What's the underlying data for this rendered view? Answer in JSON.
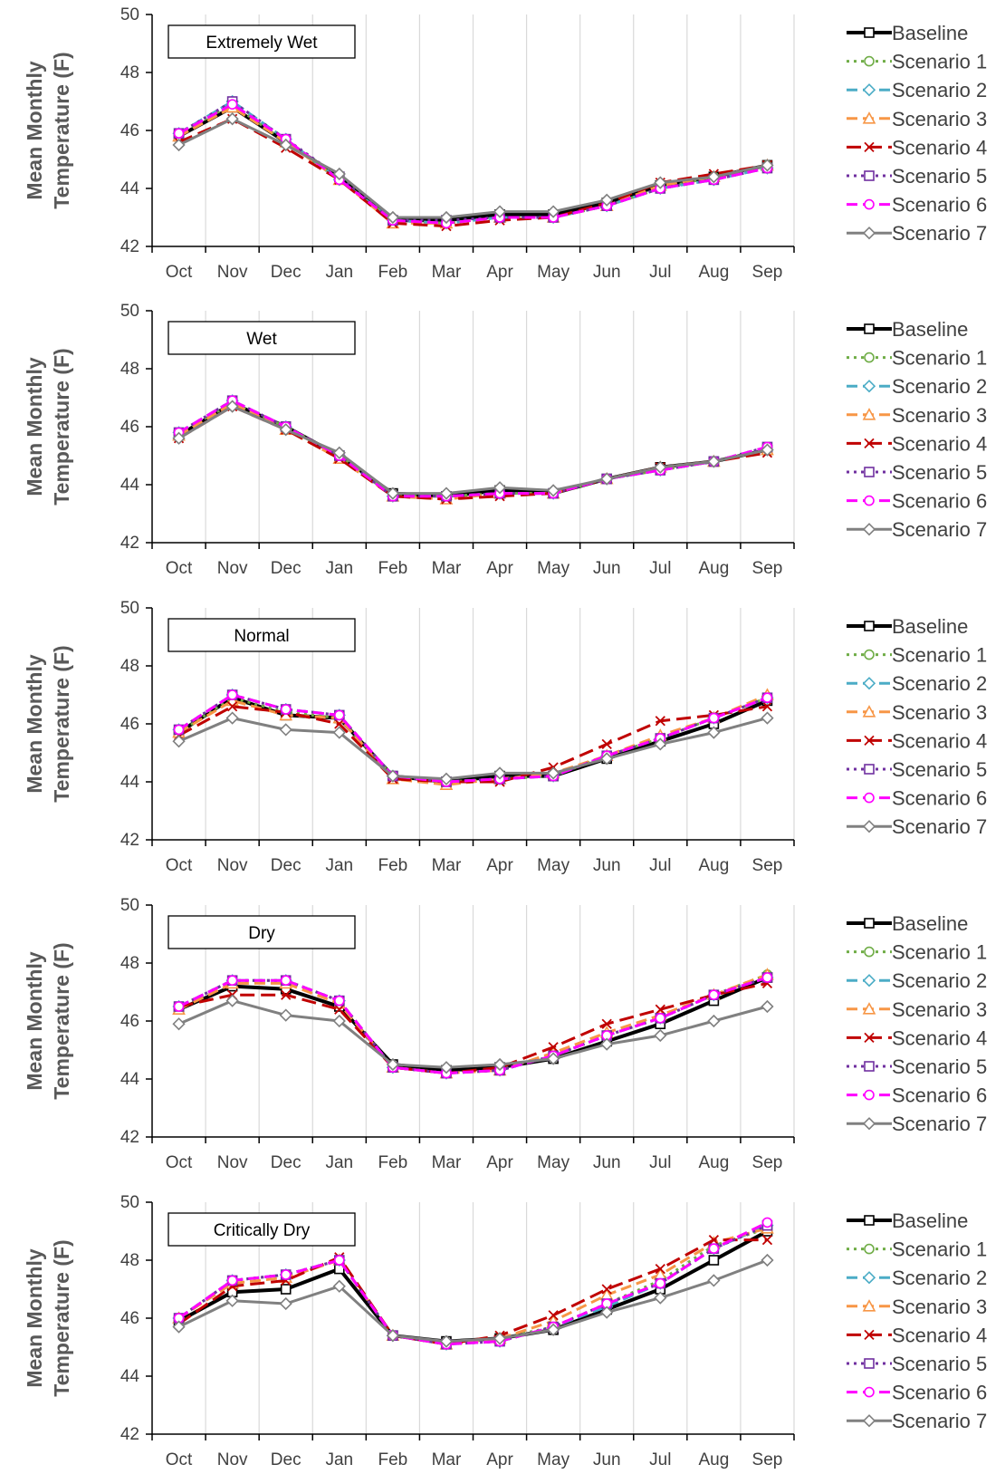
{
  "y_axis_label_line1": "Mean Monthly",
  "y_axis_label_line2": "Temperature (F)",
  "styles": [
    {
      "color": "#000000",
      "dash": "",
      "width": 4,
      "marker": "square"
    },
    {
      "color": "#70AD47",
      "dash": "3 5",
      "width": 3,
      "marker": "circle"
    },
    {
      "color": "#4BACC6",
      "dash": "12 6",
      "width": 3,
      "marker": "diamond"
    },
    {
      "color": "#F79646",
      "dash": "12 6",
      "width": 3,
      "marker": "triangle"
    },
    {
      "color": "#C00000",
      "dash": "16 7",
      "width": 3,
      "marker": "x"
    },
    {
      "color": "#7030A0",
      "dash": "3 5",
      "width": 3,
      "marker": "square"
    },
    {
      "color": "#FF00FF",
      "dash": "12 6",
      "width": 3,
      "marker": "circle"
    },
    {
      "color": "#808080",
      "dash": "",
      "width": 3,
      "marker": "diamond"
    }
  ],
  "chart_data": [
    {
      "type": "line",
      "title": "Extremely Wet",
      "categories": [
        "Oct",
        "Nov",
        "Dec",
        "Jan",
        "Feb",
        "Mar",
        "Apr",
        "May",
        "Jun",
        "Jul",
        "Aug",
        "Sep"
      ],
      "ylim": [
        42,
        50
      ],
      "yticks": [
        42,
        44,
        46,
        48,
        50
      ],
      "ylabel": "Mean Monthly Temperature (F)",
      "series": [
        {
          "name": "Baseline",
          "values": [
            45.8,
            46.8,
            45.6,
            44.4,
            42.9,
            42.9,
            43.1,
            43.1,
            43.5,
            44.1,
            44.4,
            44.8
          ]
        },
        {
          "name": "Scenario 1",
          "values": [
            45.9,
            46.9,
            45.6,
            44.3,
            42.9,
            42.8,
            43.0,
            43.0,
            43.4,
            44.0,
            44.4,
            44.8
          ]
        },
        {
          "name": "Scenario 2",
          "values": [
            45.9,
            47.0,
            45.7,
            44.3,
            42.9,
            42.8,
            43.0,
            43.0,
            43.4,
            44.0,
            44.3,
            44.7
          ]
        },
        {
          "name": "Scenario 3",
          "values": [
            45.8,
            46.8,
            45.6,
            44.3,
            42.8,
            42.8,
            43.0,
            43.0,
            43.4,
            44.1,
            44.4,
            44.8
          ]
        },
        {
          "name": "Scenario 4",
          "values": [
            45.6,
            46.4,
            45.4,
            44.3,
            42.8,
            42.7,
            42.9,
            43.0,
            43.5,
            44.2,
            44.5,
            44.8
          ]
        },
        {
          "name": "Scenario 5",
          "values": [
            45.9,
            47.0,
            45.7,
            44.4,
            42.9,
            42.9,
            43.0,
            43.0,
            43.4,
            44.0,
            44.3,
            44.7
          ]
        },
        {
          "name": "Scenario 6",
          "values": [
            45.9,
            46.9,
            45.7,
            44.3,
            42.9,
            42.8,
            43.0,
            43.0,
            43.4,
            44.0,
            44.3,
            44.7
          ]
        },
        {
          "name": "Scenario 7",
          "values": [
            45.5,
            46.4,
            45.5,
            44.5,
            43.0,
            43.0,
            43.2,
            43.2,
            43.6,
            44.2,
            44.4,
            44.8
          ]
        }
      ]
    },
    {
      "type": "line",
      "title": "Wet",
      "categories": [
        "Oct",
        "Nov",
        "Dec",
        "Jan",
        "Feb",
        "Mar",
        "Apr",
        "May",
        "Jun",
        "Jul",
        "Aug",
        "Sep"
      ],
      "ylim": [
        42,
        50
      ],
      "yticks": [
        42,
        44,
        46,
        48,
        50
      ],
      "ylabel": "Mean Monthly Temperature (F)",
      "series": [
        {
          "name": "Baseline",
          "values": [
            45.7,
            46.8,
            46.0,
            45.0,
            43.7,
            43.6,
            43.8,
            43.7,
            44.2,
            44.6,
            44.8,
            45.2
          ]
        },
        {
          "name": "Scenario 1",
          "values": [
            45.8,
            46.8,
            46.0,
            45.0,
            43.6,
            43.6,
            43.7,
            43.7,
            44.2,
            44.5,
            44.8,
            45.2
          ]
        },
        {
          "name": "Scenario 2",
          "values": [
            45.8,
            46.9,
            46.0,
            45.0,
            43.6,
            43.6,
            43.7,
            43.7,
            44.2,
            44.5,
            44.8,
            45.2
          ]
        },
        {
          "name": "Scenario 3",
          "values": [
            45.7,
            46.8,
            45.9,
            44.9,
            43.6,
            43.5,
            43.7,
            43.7,
            44.2,
            44.6,
            44.8,
            45.2
          ]
        },
        {
          "name": "Scenario 4",
          "values": [
            45.6,
            46.7,
            45.9,
            44.9,
            43.6,
            43.5,
            43.6,
            43.7,
            44.2,
            44.6,
            44.8,
            45.1
          ]
        },
        {
          "name": "Scenario 5",
          "values": [
            45.8,
            46.9,
            46.0,
            45.0,
            43.6,
            43.6,
            43.7,
            43.7,
            44.2,
            44.5,
            44.8,
            45.3
          ]
        },
        {
          "name": "Scenario 6",
          "values": [
            45.8,
            46.9,
            46.0,
            45.0,
            43.6,
            43.6,
            43.7,
            43.7,
            44.2,
            44.5,
            44.8,
            45.3
          ]
        },
        {
          "name": "Scenario 7",
          "values": [
            45.6,
            46.7,
            45.9,
            45.1,
            43.7,
            43.7,
            43.9,
            43.8,
            44.2,
            44.6,
            44.8,
            45.2
          ]
        }
      ]
    },
    {
      "type": "line",
      "title": "Normal",
      "categories": [
        "Oct",
        "Nov",
        "Dec",
        "Jan",
        "Feb",
        "Mar",
        "Apr",
        "May",
        "Jun",
        "Jul",
        "Aug",
        "Sep"
      ],
      "ylim": [
        42,
        50
      ],
      "yticks": [
        42,
        44,
        46,
        48,
        50
      ],
      "ylabel": "Mean Monthly Temperature (F)",
      "series": [
        {
          "name": "Baseline",
          "values": [
            45.7,
            46.9,
            46.3,
            46.2,
            44.2,
            44.0,
            44.2,
            44.2,
            44.8,
            45.4,
            46.0,
            46.8
          ]
        },
        {
          "name": "Scenario 1",
          "values": [
            45.7,
            46.9,
            46.4,
            46.2,
            44.2,
            44.0,
            44.1,
            44.2,
            44.9,
            45.5,
            46.2,
            46.9
          ]
        },
        {
          "name": "Scenario 2",
          "values": [
            45.8,
            47.0,
            46.5,
            46.3,
            44.2,
            44.0,
            44.1,
            44.2,
            44.9,
            45.5,
            46.2,
            46.9
          ]
        },
        {
          "name": "Scenario 3",
          "values": [
            45.7,
            46.8,
            46.3,
            46.2,
            44.1,
            43.9,
            44.1,
            44.3,
            44.9,
            45.6,
            46.2,
            47.0
          ]
        },
        {
          "name": "Scenario 4",
          "values": [
            45.6,
            46.6,
            46.4,
            46.0,
            44.1,
            44.0,
            44.0,
            44.5,
            45.3,
            46.1,
            46.3,
            46.6
          ]
        },
        {
          "name": "Scenario 5",
          "values": [
            45.8,
            47.0,
            46.5,
            46.3,
            44.2,
            44.0,
            44.1,
            44.2,
            44.9,
            45.5,
            46.2,
            46.9
          ]
        },
        {
          "name": "Scenario 6",
          "values": [
            45.8,
            47.0,
            46.5,
            46.3,
            44.2,
            44.0,
            44.1,
            44.2,
            44.9,
            45.5,
            46.2,
            46.9
          ]
        },
        {
          "name": "Scenario 7",
          "values": [
            45.4,
            46.2,
            45.8,
            45.7,
            44.2,
            44.1,
            44.3,
            44.3,
            44.8,
            45.3,
            45.7,
            46.2
          ]
        }
      ]
    },
    {
      "type": "line",
      "title": "Dry",
      "categories": [
        "Oct",
        "Nov",
        "Dec",
        "Jan",
        "Feb",
        "Mar",
        "Apr",
        "May",
        "Jun",
        "Jul",
        "Aug",
        "Sep"
      ],
      "ylim": [
        42,
        50
      ],
      "yticks": [
        42,
        44,
        46,
        48,
        50
      ],
      "ylabel": "Mean Monthly Temperature (F)",
      "series": [
        {
          "name": "Baseline",
          "values": [
            46.4,
            47.2,
            47.1,
            46.5,
            44.5,
            44.3,
            44.4,
            44.7,
            45.3,
            45.9,
            46.7,
            47.5
          ]
        },
        {
          "name": "Scenario 1",
          "values": [
            46.5,
            47.4,
            47.4,
            46.7,
            44.4,
            44.2,
            44.3,
            44.8,
            45.5,
            46.1,
            46.9,
            47.6
          ]
        },
        {
          "name": "Scenario 2",
          "values": [
            46.5,
            47.4,
            47.4,
            46.7,
            44.4,
            44.2,
            44.3,
            44.8,
            45.5,
            46.1,
            46.9,
            47.5
          ]
        },
        {
          "name": "Scenario 3",
          "values": [
            46.4,
            47.3,
            47.3,
            46.6,
            44.4,
            44.2,
            44.3,
            44.9,
            45.6,
            46.2,
            46.9,
            47.6
          ]
        },
        {
          "name": "Scenario 4",
          "values": [
            46.5,
            46.9,
            46.9,
            46.4,
            44.4,
            44.2,
            44.4,
            45.1,
            45.9,
            46.4,
            46.9,
            47.3
          ]
        },
        {
          "name": "Scenario 5",
          "values": [
            46.5,
            47.4,
            47.4,
            46.7,
            44.4,
            44.2,
            44.3,
            44.8,
            45.5,
            46.1,
            46.9,
            47.5
          ]
        },
        {
          "name": "Scenario 6",
          "values": [
            46.5,
            47.4,
            47.4,
            46.7,
            44.4,
            44.2,
            44.3,
            44.8,
            45.5,
            46.1,
            46.9,
            47.5
          ]
        },
        {
          "name": "Scenario 7",
          "values": [
            45.9,
            46.7,
            46.2,
            46.0,
            44.5,
            44.4,
            44.5,
            44.7,
            45.2,
            45.5,
            46.0,
            46.5
          ]
        }
      ]
    },
    {
      "type": "line",
      "title": "Critically Dry",
      "categories": [
        "Oct",
        "Nov",
        "Dec",
        "Jan",
        "Feb",
        "Mar",
        "Apr",
        "May",
        "Jun",
        "Jul",
        "Aug",
        "Sep"
      ],
      "ylim": [
        42,
        50
      ],
      "yticks": [
        42,
        44,
        46,
        48,
        50
      ],
      "ylabel": "Mean Monthly Temperature (F)",
      "series": [
        {
          "name": "Baseline",
          "values": [
            45.9,
            46.9,
            47.0,
            47.7,
            45.4,
            45.2,
            45.3,
            45.6,
            46.3,
            47.0,
            48.0,
            49.0
          ]
        },
        {
          "name": "Scenario 1",
          "values": [
            46.0,
            47.3,
            47.5,
            48.0,
            45.4,
            45.1,
            45.3,
            45.7,
            46.5,
            47.3,
            48.5,
            49.1
          ]
        },
        {
          "name": "Scenario 2",
          "values": [
            46.0,
            47.3,
            47.5,
            48.0,
            45.4,
            45.1,
            45.2,
            45.7,
            46.4,
            47.2,
            48.4,
            49.2
          ]
        },
        {
          "name": "Scenario 3",
          "values": [
            46.0,
            47.2,
            47.4,
            48.0,
            45.4,
            45.1,
            45.3,
            45.9,
            46.8,
            47.5,
            48.6,
            49.1
          ]
        },
        {
          "name": "Scenario 4",
          "values": [
            45.8,
            47.1,
            47.3,
            48.1,
            45.4,
            45.1,
            45.4,
            46.1,
            47.0,
            47.7,
            48.7,
            48.7
          ]
        },
        {
          "name": "Scenario 5",
          "values": [
            46.0,
            47.3,
            47.5,
            48.0,
            45.4,
            45.1,
            45.2,
            45.7,
            46.5,
            47.2,
            48.4,
            49.2
          ]
        },
        {
          "name": "Scenario 6",
          "values": [
            46.0,
            47.3,
            47.5,
            48.0,
            45.4,
            45.1,
            45.2,
            45.7,
            46.5,
            47.2,
            48.4,
            49.3
          ]
        },
        {
          "name": "Scenario 7",
          "values": [
            45.7,
            46.6,
            46.5,
            47.1,
            45.4,
            45.2,
            45.3,
            45.6,
            46.2,
            46.7,
            47.3,
            48.0
          ]
        }
      ]
    }
  ]
}
